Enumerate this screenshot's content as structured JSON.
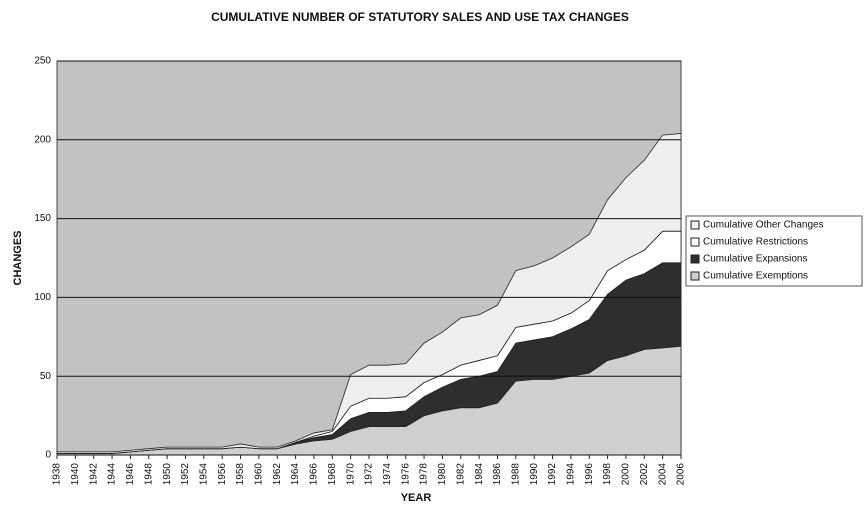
{
  "chart_data": {
    "type": "stacked_area",
    "title": "CUMULATIVE NUMBER OF STATUTORY SALES AND USE TAX CHANGES",
    "xlabel": "YEAR",
    "ylabel": "CHANGES",
    "categories": [
      "1938",
      "1940",
      "1942",
      "1944",
      "1946",
      "1948",
      "1950",
      "1952",
      "1954",
      "1956",
      "1958",
      "1960",
      "1962",
      "1964",
      "1966",
      "1968",
      "1970",
      "1972",
      "1974",
      "1976",
      "1978",
      "1980",
      "1982",
      "1984",
      "1986",
      "1988",
      "1990",
      "1992",
      "1994",
      "1996",
      "1998",
      "2000",
      "2002",
      "2004",
      "2006"
    ],
    "series": [
      {
        "name": "Cumulative Exemptions",
        "color": "#cfcfcf",
        "values": [
          1,
          1,
          1,
          1,
          2,
          3,
          4,
          4,
          4,
          4,
          5,
          4,
          4,
          7,
          9,
          10,
          15,
          18,
          18,
          18,
          25,
          28,
          30,
          30,
          33,
          47,
          48,
          48,
          50,
          52,
          60,
          63,
          67,
          68,
          69
        ]
      },
      {
        "name": "Cumulative Expansions",
        "color": "#2e2e2e",
        "values": [
          0,
          0,
          0,
          0,
          0,
          0,
          0,
          0,
          0,
          0,
          0,
          0,
          0,
          1,
          2,
          3,
          8,
          9,
          9,
          10,
          12,
          15,
          18,
          20,
          20,
          24,
          25,
          27,
          30,
          34,
          42,
          48,
          48,
          54,
          53
        ]
      },
      {
        "name": "Cumulative Restrictions",
        "color": "#ffffff",
        "values": [
          0,
          0,
          0,
          0,
          0,
          0,
          0,
          0,
          0,
          0,
          0,
          0,
          0,
          0,
          1,
          2,
          8,
          9,
          9,
          9,
          9,
          8,
          9,
          10,
          10,
          10,
          10,
          10,
          10,
          12,
          15,
          13,
          15,
          20,
          20
        ]
      },
      {
        "name": "Cumulative Other Changes",
        "color": "#efefef",
        "values": [
          1,
          1,
          1,
          1,
          1,
          1,
          1,
          1,
          1,
          1,
          2,
          1,
          1,
          1,
          2,
          1,
          20,
          21,
          21,
          21,
          25,
          27,
          30,
          29,
          32,
          36,
          37,
          40,
          42,
          42,
          45,
          52,
          57,
          61,
          62
        ]
      }
    ],
    "ylim": [
      0,
      250
    ],
    "yticks": [
      0,
      50,
      100,
      150,
      200,
      250
    ],
    "grid": true,
    "plot_background": "#c2c2c2"
  }
}
